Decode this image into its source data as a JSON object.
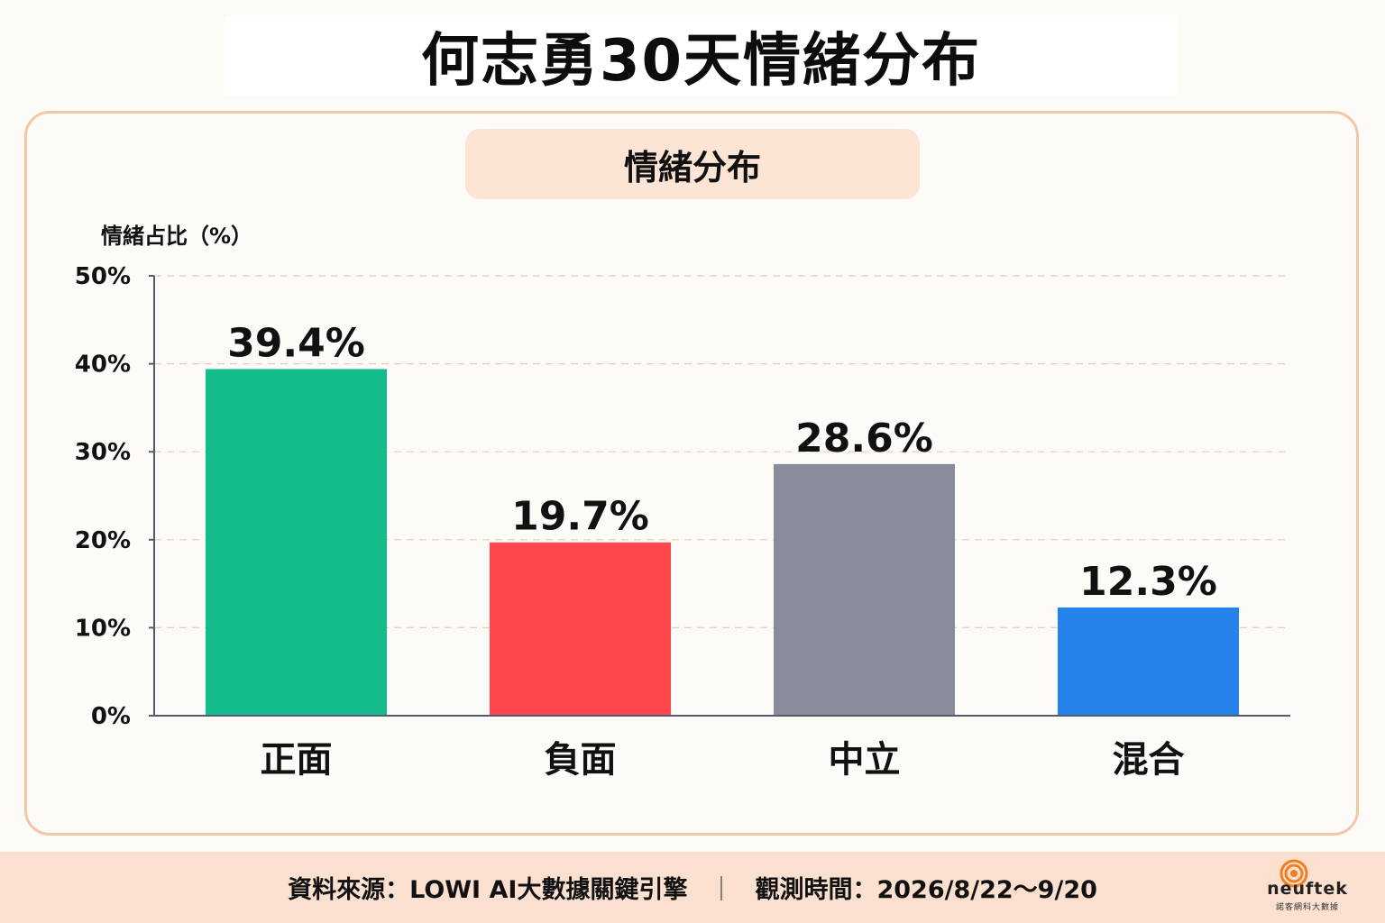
{
  "header": {
    "title": "何志勇30天情緒分布"
  },
  "panel": {
    "subtitle": "情緒分布"
  },
  "chart_data": {
    "type": "bar",
    "title": "情緒分布",
    "ylabel": "情緒占比（%）",
    "xlabel": "",
    "categories": [
      "正面",
      "負面",
      "中立",
      "混合"
    ],
    "values": [
      39.4,
      19.7,
      28.6,
      12.3
    ],
    "value_labels": [
      "39.4%",
      "19.7%",
      "28.6%",
      "12.3%"
    ],
    "colors": [
      "#14bc8c",
      "#ff474d",
      "#888c9a",
      "#2582ea"
    ],
    "ylim": [
      0,
      50
    ],
    "yticks": [
      0,
      10,
      20,
      30,
      40,
      50
    ],
    "ytick_labels": [
      "0%",
      "10%",
      "20%",
      "30%",
      "40%",
      "50%"
    ],
    "grid": "horizontal dashed"
  },
  "footer": {
    "source": "資料來源：LOWI AI大數據關鍵引擎",
    "separator": "｜",
    "period": "觀測時間：2026/8/22〜9/20"
  },
  "logo": {
    "word": "neuftek",
    "sub": "諾客網科大數據"
  },
  "colors": {
    "accent": "#f4c5a7",
    "pill": "#fde5d6",
    "footer_bg": "#fbe0cf",
    "logo": "#f07f22"
  }
}
